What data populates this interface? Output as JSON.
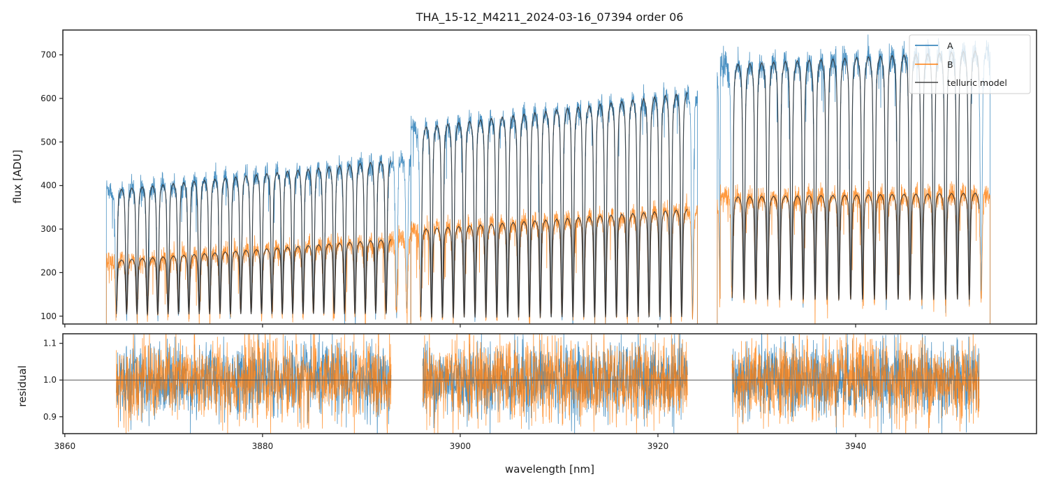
{
  "chart_data": [
    {
      "id": "flux-panel",
      "type": "line",
      "title": "THA_15-12_M4211_2024-03-16_07394  order 06",
      "xlabel": "",
      "ylabel": "flux [ADU]",
      "xlim": [
        3859.8,
        3958.3
      ],
      "ylim": [
        82,
        757
      ],
      "xticks": [
        3860,
        3880,
        3900,
        3920,
        3940
      ],
      "xtick_labels": [
        "",
        "",
        "",
        "",
        ""
      ],
      "yticks": [
        100,
        200,
        300,
        400,
        500,
        600,
        700
      ],
      "ytick_labels": [
        "100",
        "200",
        "300",
        "400",
        "500",
        "600",
        "700"
      ],
      "grid": false,
      "legend": {
        "placement": "top-right",
        "entries": [
          {
            "label": "A",
            "color": "#1f77b4"
          },
          {
            "label": "B",
            "color": "#ff7f0e"
          },
          {
            "label": "telluric model",
            "color": "#444444"
          }
        ]
      },
      "segments": [
        {
          "x_range": [
            3864.2,
            3895.0
          ],
          "model_x_range": [
            3865.2,
            3893.0
          ],
          "line_spacing_nm": 1.05,
          "series": [
            {
              "name": "A",
              "color": "#1f77b4",
              "continuum_start": 392,
              "continuum_end": 468,
              "line_depth_min": 100,
              "noise": 14
            },
            {
              "name": "B",
              "color": "#ff7f0e",
              "continuum_start": 228,
              "continuum_end": 283,
              "line_depth_min": 100,
              "noise": 12
            }
          ]
        },
        {
          "x_range": [
            3895.0,
            3924.0
          ],
          "model_x_range": [
            3896.0,
            3923.0
          ],
          "line_spacing_nm": 1.1,
          "series": [
            {
              "name": "A",
              "color": "#1f77b4",
              "continuum_start": 535,
              "continuum_end": 622,
              "line_depth_min": 90,
              "noise": 14
            },
            {
              "name": "B",
              "color": "#ff7f0e",
              "continuum_start": 300,
              "continuum_end": 350,
              "line_depth_min": 90,
              "noise": 12
            }
          ]
        },
        {
          "x_range": [
            3926.0,
            3953.6
          ],
          "model_x_range": [
            3927.5,
            3952.5
          ],
          "line_spacing_nm": 1.2,
          "series": [
            {
              "name": "A",
              "color": "#1f77b4",
              "continuum_start": 680,
              "continuum_end": 715,
              "line_depth_min": 130,
              "noise": 16
            },
            {
              "name": "B",
              "color": "#ff7f0e",
              "continuum_start": 375,
              "continuum_end": 385,
              "line_depth_min": 130,
              "noise": 13
            }
          ]
        }
      ]
    },
    {
      "id": "residual-panel",
      "type": "line",
      "title": "",
      "xlabel": "wavelength [nm]",
      "ylabel": "residual",
      "xlim": [
        3859.8,
        3958.3
      ],
      "ylim": [
        0.854,
        1.126
      ],
      "xticks": [
        3860,
        3880,
        3900,
        3920,
        3940
      ],
      "xtick_labels": [
        "3860",
        "3880",
        "3900",
        "3920",
        "3940"
      ],
      "yticks": [
        0.9,
        1.0,
        1.1
      ],
      "ytick_labels": [
        "0.9",
        "1.0",
        "1.1"
      ],
      "reference_line": 1.0,
      "grid": false,
      "segments": [
        {
          "x_range": [
            3865.2,
            3893.0
          ]
        },
        {
          "x_range": [
            3896.2,
            3923.0
          ]
        },
        {
          "x_range": [
            3927.5,
            3952.5
          ]
        }
      ],
      "series": [
        {
          "name": "A",
          "color": "#1f77b4",
          "scatter_sigma": 0.05
        },
        {
          "name": "B",
          "color": "#ff7f0e",
          "scatter_sigma": 0.055
        }
      ]
    }
  ]
}
